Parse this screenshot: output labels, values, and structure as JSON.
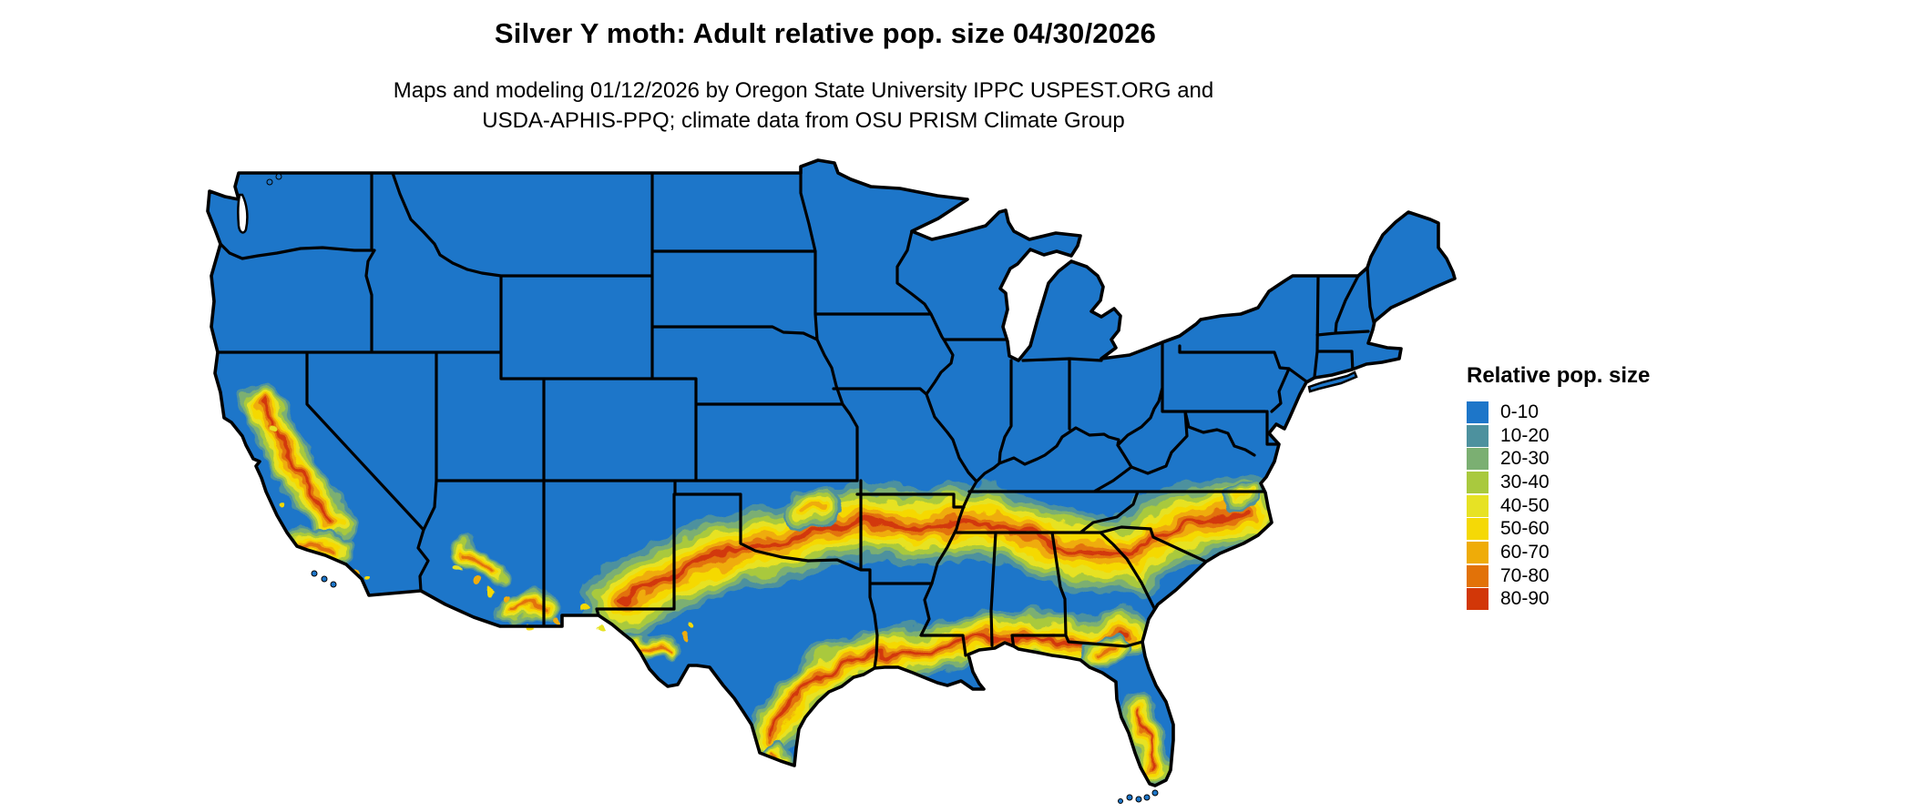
{
  "title": "Silver Y moth: Adult relative pop. size 04/30/2026",
  "subtitle_line1": "Maps and modeling 01/12/2026 by Oregon State University IPPC USPEST.ORG and",
  "subtitle_line2": "USDA-APHIS-PPQ; climate data from OSU PRISM Climate Group",
  "legend": {
    "title": "Relative pop. size",
    "classes": [
      {
        "label": "0-10",
        "color": "#1D76C9"
      },
      {
        "label": "10-20",
        "color": "#4D919E"
      },
      {
        "label": "20-30",
        "color": "#7BAF72"
      },
      {
        "label": "30-40",
        "color": "#A9C93E"
      },
      {
        "label": "40-50",
        "color": "#E7E224"
      },
      {
        "label": "50-60",
        "color": "#F5D906"
      },
      {
        "label": "60-70",
        "color": "#EFAC08"
      },
      {
        "label": "70-80",
        "color": "#E27208"
      },
      {
        "label": "80-90",
        "color": "#D23708"
      }
    ]
  },
  "map": {
    "region_label": "Contiguous United States raster map with state borders",
    "base_fill_class": "0-10",
    "state_border_color": "#000000",
    "water_color": "#FFFFFF",
    "hotspot_regions": [
      "California Central Valley and southern coast",
      "Southern Arizona and southwest New Mexico",
      "Band from west Texas along the Red River through Oklahoma and Arkansas",
      "Band through Tennessee, northern Alabama, Georgia and the Carolinas to the Atlantic coast",
      "Gulf Coast band from south Texas through Louisiana to the Florida panhandle",
      "Central and southern Florida"
    ]
  }
}
